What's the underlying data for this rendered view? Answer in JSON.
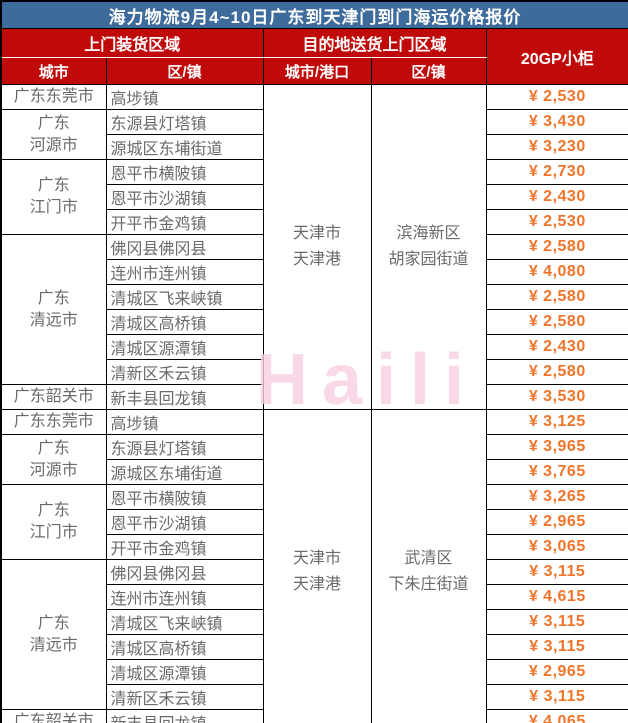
{
  "title": "海力物流9月4~10日广东到天津门到门海运价格报价",
  "watermark": "Haili",
  "colors": {
    "title_bg": "#3d6b9c",
    "header_bg": "#c00a0a",
    "price_text": "#f0752b",
    "body_text": "#6a6a6a",
    "watermark_pink": "#f8cfe3"
  },
  "header": {
    "pickup_group": "上门装货区域",
    "delivery_group": "目的地送货上门区域",
    "container_type": "20GP小柜",
    "pickup_city": "城市",
    "pickup_district": "区/镇",
    "delivery_city": "城市/港口",
    "delivery_district": "区/镇"
  },
  "sections": [
    {
      "delivery_city_lines": [
        "天津市",
        "天津港"
      ],
      "delivery_district_lines": [
        "滨海新区",
        "胡家园街道"
      ],
      "city_groups": [
        {
          "city_lines": [
            "广东东莞市"
          ],
          "rows": [
            {
              "district": "高埗镇",
              "price": "¥ 2,530"
            }
          ]
        },
        {
          "city_lines": [
            "广东",
            "河源市"
          ],
          "rows": [
            {
              "district": "东源县灯塔镇",
              "price": "¥ 3,430"
            },
            {
              "district": "源城区东埔街道",
              "price": "¥ 3,230"
            }
          ]
        },
        {
          "city_lines": [
            "广东",
            "江门市"
          ],
          "rows": [
            {
              "district": "恩平市横陂镇",
              "price": "¥ 2,730"
            },
            {
              "district": "恩平市沙湖镇",
              "price": "¥ 2,430"
            },
            {
              "district": "开平市金鸡镇",
              "price": "¥ 2,530"
            }
          ]
        },
        {
          "city_lines": [
            "广东",
            "清远市"
          ],
          "rows": [
            {
              "district": "佛冈县佛冈县",
              "price": "¥ 2,580"
            },
            {
              "district": "连州市连州镇",
              "price": "¥ 4,080"
            },
            {
              "district": "清城区飞来峡镇",
              "price": "¥ 2,580"
            },
            {
              "district": "清城区高桥镇",
              "price": "¥ 2,580"
            },
            {
              "district": "清城区源潭镇",
              "price": "¥ 2,430"
            },
            {
              "district": "清新区禾云镇",
              "price": "¥ 2,580"
            }
          ]
        },
        {
          "city_lines": [
            "广东韶关市"
          ],
          "rows": [
            {
              "district": "新丰县回龙镇",
              "price": "¥ 3,530"
            }
          ]
        }
      ]
    },
    {
      "delivery_city_lines": [
        "天津市",
        "天津港"
      ],
      "delivery_district_lines": [
        "武清区",
        "下朱庄街道"
      ],
      "city_groups": [
        {
          "city_lines": [
            "广东东莞市"
          ],
          "rows": [
            {
              "district": "高埗镇",
              "price": "¥ 3,125"
            }
          ]
        },
        {
          "city_lines": [
            "广东",
            "河源市"
          ],
          "rows": [
            {
              "district": "东源县灯塔镇",
              "price": "¥ 3,965"
            },
            {
              "district": "源城区东埔街道",
              "price": "¥ 3,765"
            }
          ]
        },
        {
          "city_lines": [
            "广东",
            "江门市"
          ],
          "rows": [
            {
              "district": "恩平市横陂镇",
              "price": "¥ 3,265"
            },
            {
              "district": "恩平市沙湖镇",
              "price": "¥ 2,965"
            },
            {
              "district": "开平市金鸡镇",
              "price": "¥ 3,065"
            }
          ]
        },
        {
          "city_lines": [
            "广东",
            "清远市"
          ],
          "rows": [
            {
              "district": "佛冈县佛冈县",
              "price": "¥ 3,115"
            },
            {
              "district": "连州市连州镇",
              "price": "¥ 4,615"
            },
            {
              "district": "清城区飞来峡镇",
              "price": "¥ 3,115"
            },
            {
              "district": "清城区高桥镇",
              "price": "¥ 3,115"
            },
            {
              "district": "清城区源潭镇",
              "price": "¥ 2,965"
            },
            {
              "district": "清新区禾云镇",
              "price": "¥ 3,115"
            }
          ]
        },
        {
          "city_lines": [
            "广东韶关市"
          ],
          "rows": [
            {
              "district": "新丰县回龙镇",
              "price": "¥ 4,065"
            }
          ]
        }
      ]
    }
  ]
}
